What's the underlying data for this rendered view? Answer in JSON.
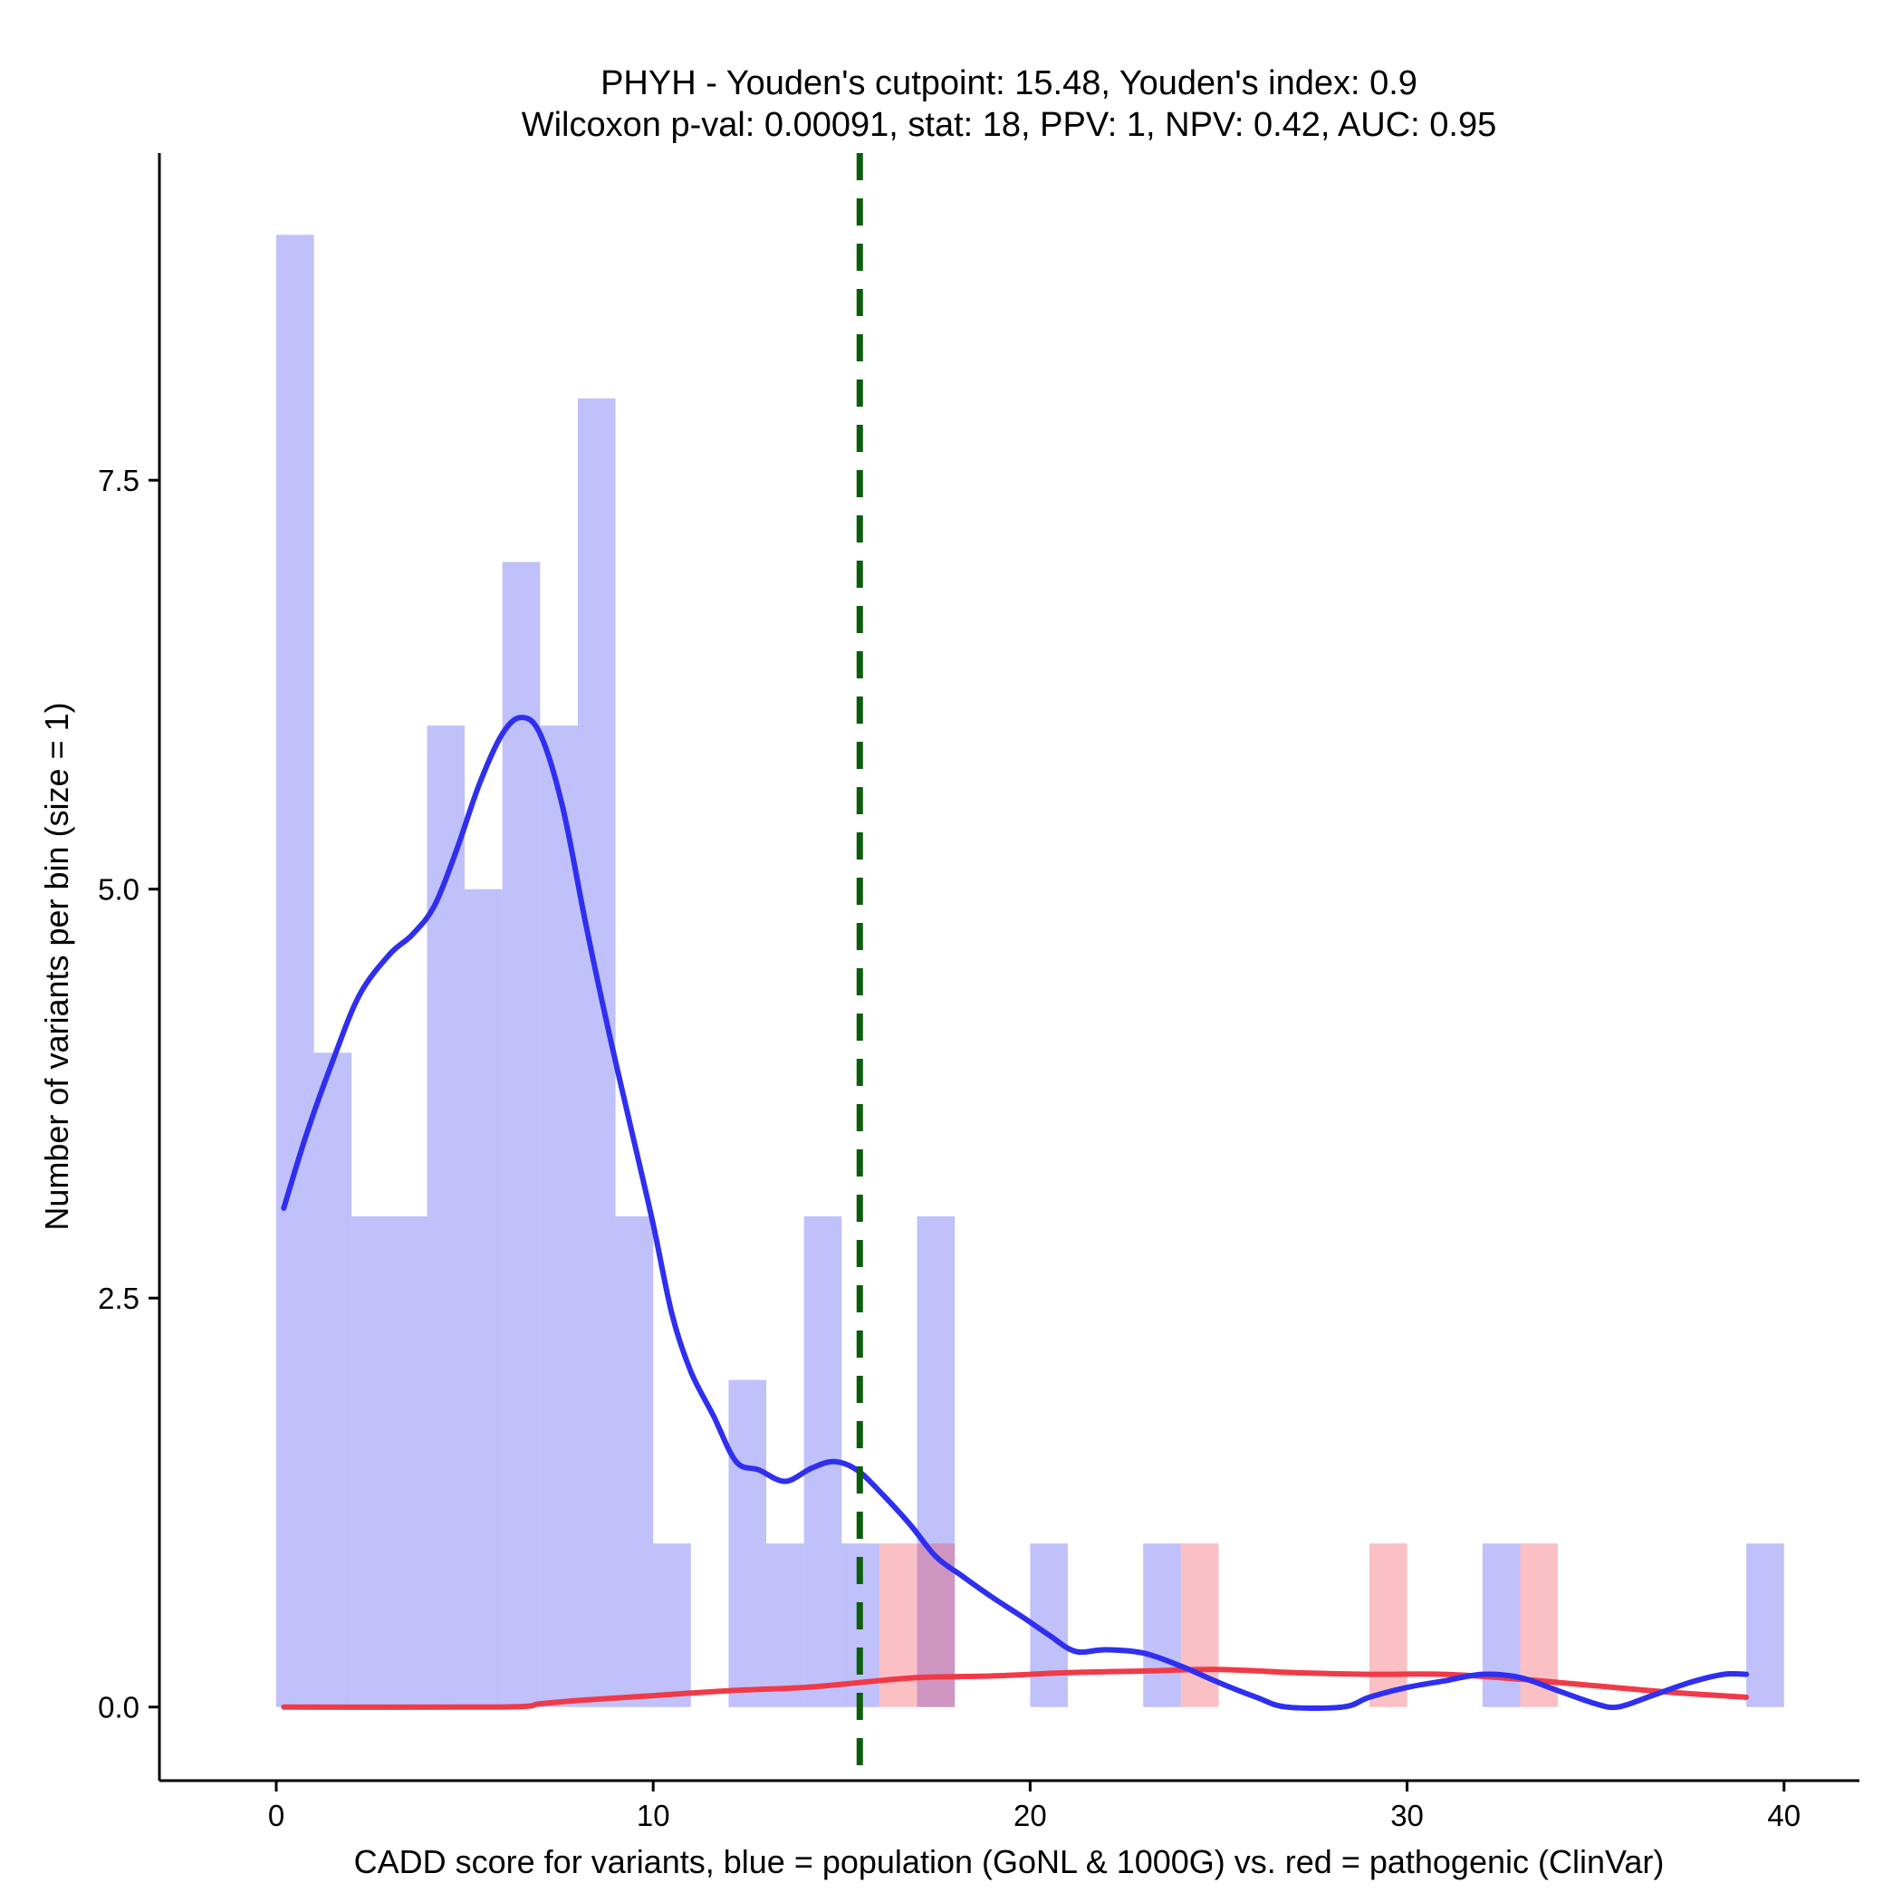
{
  "chart_data": {
    "type": "bar",
    "title": "PHYH - Youden's cutpoint: 15.48, Youden's index: 0.9",
    "subtitle": "Wilcoxon p-val: 0.00091, stat: 18, PPV: 1, NPV: 0.42, AUC: 0.95",
    "xlabel": "CADD score for variants, blue = population (GoNL & 1000G) vs. red = pathogenic (ClinVar)",
    "ylabel": "Number of variants per bin (size = 1)",
    "xlim": [
      -3.1,
      42.0
    ],
    "ylim": [
      -0.45,
      9.5
    ],
    "xticks": [
      0,
      10,
      20,
      30,
      40
    ],
    "xtick_labels": [
      "0",
      "10",
      "20",
      "30",
      "40"
    ],
    "yticks": [
      0,
      2.5,
      5,
      7.5
    ],
    "ytick_labels": [
      "0.0",
      "2.5",
      "5.0",
      "7.5"
    ],
    "bin_width": 1,
    "grid": false,
    "cutpoint": {
      "x": 15.48,
      "color": "#0b5e0b"
    },
    "series": [
      {
        "name": "population (GoNL & 1000G)",
        "color": "#7b7bf7",
        "bins": [
          {
            "x0": 0,
            "x1": 1,
            "count": 9
          },
          {
            "x0": 1,
            "x1": 2,
            "count": 4
          },
          {
            "x0": 2,
            "x1": 3,
            "count": 3
          },
          {
            "x0": 3,
            "x1": 4,
            "count": 3
          },
          {
            "x0": 4,
            "x1": 5,
            "count": 6
          },
          {
            "x0": 5,
            "x1": 6,
            "count": 5
          },
          {
            "x0": 6,
            "x1": 7,
            "count": 7
          },
          {
            "x0": 7,
            "x1": 8,
            "count": 6
          },
          {
            "x0": 8,
            "x1": 9,
            "count": 8
          },
          {
            "x0": 9,
            "x1": 10,
            "count": 3
          },
          {
            "x0": 10,
            "x1": 11,
            "count": 1
          },
          {
            "x0": 12,
            "x1": 13,
            "count": 2
          },
          {
            "x0": 13,
            "x1": 14,
            "count": 1
          },
          {
            "x0": 14,
            "x1": 15,
            "count": 3
          },
          {
            "x0": 15,
            "x1": 16,
            "count": 1
          },
          {
            "x0": 17,
            "x1": 18,
            "count": 3
          },
          {
            "x0": 20,
            "x1": 21,
            "count": 1
          },
          {
            "x0": 23,
            "x1": 24,
            "count": 1
          },
          {
            "x0": 32,
            "x1": 33,
            "count": 1
          },
          {
            "x0": 39,
            "x1": 40,
            "count": 1
          }
        ],
        "density": [
          [
            0.2,
            3.05
          ],
          [
            0.8,
            3.5
          ],
          [
            1.5,
            3.95
          ],
          [
            2.2,
            4.35
          ],
          [
            3.0,
            4.6
          ],
          [
            3.6,
            4.72
          ],
          [
            4.2,
            4.9
          ],
          [
            4.8,
            5.25
          ],
          [
            5.4,
            5.65
          ],
          [
            6.0,
            5.95
          ],
          [
            6.5,
            6.05
          ],
          [
            7.0,
            5.95
          ],
          [
            7.6,
            5.5
          ],
          [
            8.2,
            4.8
          ],
          [
            8.8,
            4.15
          ],
          [
            9.4,
            3.55
          ],
          [
            10.0,
            2.95
          ],
          [
            10.5,
            2.4
          ],
          [
            11.0,
            2.05
          ],
          [
            11.6,
            1.78
          ],
          [
            12.2,
            1.5
          ],
          [
            12.8,
            1.45
          ],
          [
            13.5,
            1.38
          ],
          [
            14.2,
            1.46
          ],
          [
            14.8,
            1.5
          ],
          [
            15.4,
            1.45
          ],
          [
            16.0,
            1.32
          ],
          [
            16.8,
            1.12
          ],
          [
            17.5,
            0.92
          ],
          [
            18.2,
            0.8
          ],
          [
            19.0,
            0.67
          ],
          [
            19.8,
            0.55
          ],
          [
            20.5,
            0.44
          ],
          [
            21.2,
            0.34
          ],
          [
            22.0,
            0.35
          ],
          [
            23.0,
            0.33
          ],
          [
            24.0,
            0.25
          ],
          [
            25.0,
            0.15
          ],
          [
            26.0,
            0.06
          ],
          [
            26.8,
            0.0
          ],
          [
            28.3,
            0.0
          ],
          [
            29.0,
            0.06
          ],
          [
            30.0,
            0.12
          ],
          [
            31.0,
            0.16
          ],
          [
            32.0,
            0.2
          ],
          [
            33.0,
            0.18
          ],
          [
            34.0,
            0.1
          ],
          [
            35.0,
            0.02
          ],
          [
            35.6,
            0.0
          ],
          [
            36.5,
            0.07
          ],
          [
            37.5,
            0.15
          ],
          [
            38.4,
            0.2
          ],
          [
            39.0,
            0.2
          ]
        ]
      },
      {
        "name": "pathogenic (ClinVar)",
        "color": "#f03a48",
        "bins": [
          {
            "x0": 16,
            "x1": 17,
            "count": 1
          },
          {
            "x0": 17,
            "x1": 18,
            "count": 1
          },
          {
            "x0": 24,
            "x1": 25,
            "count": 1
          },
          {
            "x0": 29,
            "x1": 30,
            "count": 1
          },
          {
            "x0": 33,
            "x1": 34,
            "count": 1
          }
        ],
        "density": [
          [
            0.2,
            0.0
          ],
          [
            6.0,
            0.0
          ],
          [
            7.0,
            0.02
          ],
          [
            8.0,
            0.04
          ],
          [
            10.0,
            0.07
          ],
          [
            12.0,
            0.1
          ],
          [
            14.0,
            0.12
          ],
          [
            15.5,
            0.15
          ],
          [
            17.0,
            0.18
          ],
          [
            19.0,
            0.19
          ],
          [
            21.0,
            0.21
          ],
          [
            23.0,
            0.22
          ],
          [
            25.0,
            0.23
          ],
          [
            27.0,
            0.21
          ],
          [
            29.0,
            0.2
          ],
          [
            31.0,
            0.2
          ],
          [
            33.0,
            0.17
          ],
          [
            35.0,
            0.13
          ],
          [
            37.0,
            0.09
          ],
          [
            39.0,
            0.06
          ]
        ]
      }
    ]
  }
}
